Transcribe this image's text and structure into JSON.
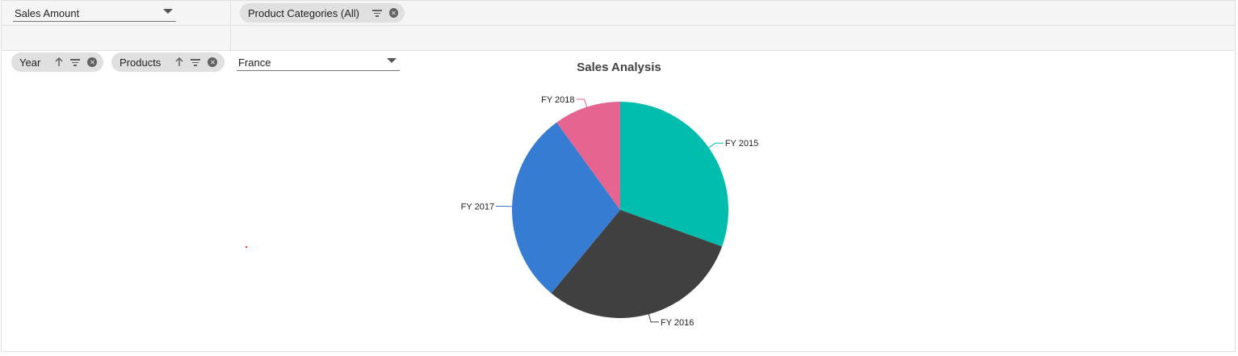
{
  "toolbar": {
    "measure_dropdown": "Sales Amount",
    "filter_pill": "Product Categories (All)",
    "row_pills": [
      "Year",
      "Products"
    ],
    "country_dropdown": "France"
  },
  "colors": {
    "FY 2015": "#00bdae",
    "FY 2016": "#404041",
    "FY 2017": "#357cd2",
    "FY 2018": "#e56590"
  },
  "chart_data": {
    "type": "pie",
    "title": "Sales Analysis",
    "categories": [
      "FY 2015",
      "FY 2016",
      "FY 2017",
      "FY 2018"
    ],
    "values": [
      30.5,
      30.5,
      29,
      10
    ],
    "start_angle_deg": 0,
    "legend": "none",
    "data_labels": "outside-with-connectors"
  }
}
